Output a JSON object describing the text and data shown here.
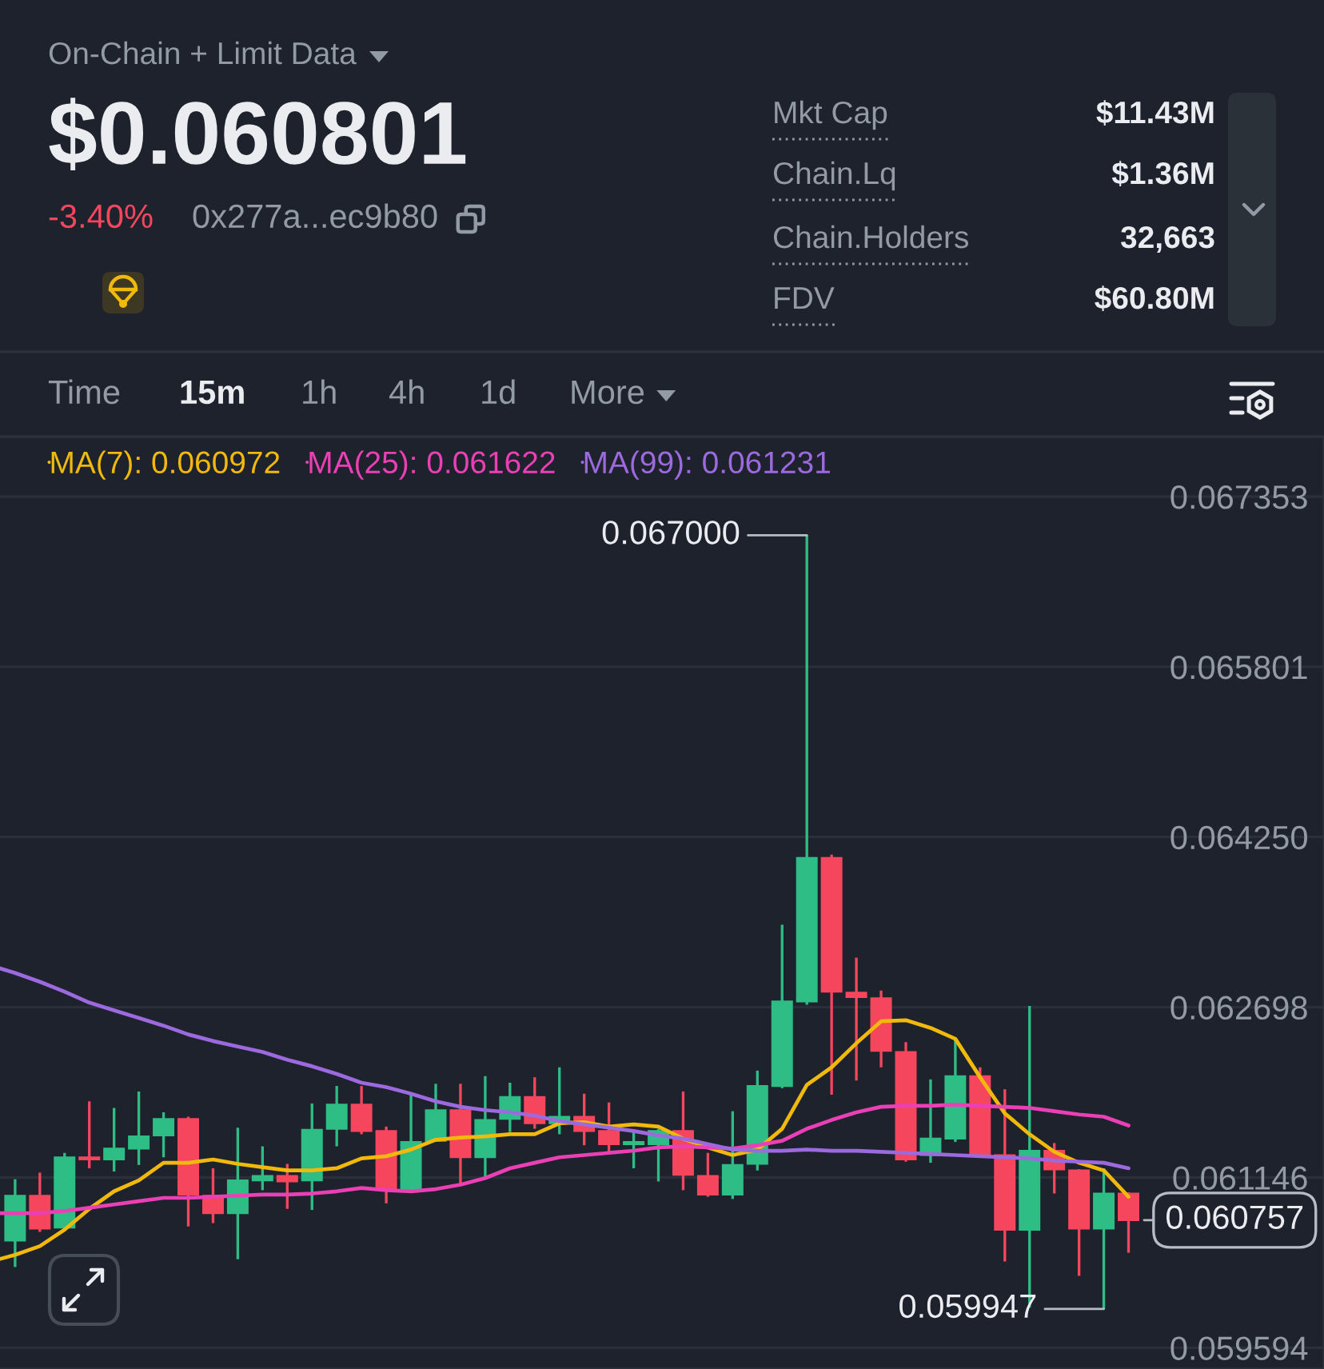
{
  "chart_data": [
    {
      "type": "other",
      "title": "On-Chain + Limit Data",
      "annotations": [
        "$0.060801",
        "-3.40%",
        "0x277a...ec9b80",
        "Mkt Cap",
        "$11.43M",
        "Chain.Lq",
        "$1.36M",
        "Chain.Holders",
        "32,663",
        "FDV",
        "$60.80M",
        "Time",
        "15m",
        "1h",
        "4h",
        "1d",
        "More"
      ]
    },
    {
      "type": "candlestick",
      "categories": [
        null,
        null,
        null,
        null,
        null,
        null,
        null,
        null,
        null,
        null,
        null,
        null,
        null,
        null,
        null,
        null,
        null,
        null,
        null,
        null,
        null,
        null,
        null,
        null,
        null,
        null,
        null,
        null,
        null,
        null,
        null,
        null,
        null,
        null,
        null,
        null,
        null,
        null,
        null,
        null,
        null,
        null,
        null,
        null,
        null,
        null,
        null
      ],
      "ohlc": [
        null,
        [
          0.06057,
          0.06113,
          0.06033,
          0.06098
        ],
        [
          0.06098,
          0.06119,
          0.06065,
          0.06068
        ],
        [
          0.06069,
          0.06137,
          0.06067,
          0.06133
        ],
        [
          0.06133,
          0.06184,
          0.06123,
          0.06131
        ],
        [
          0.06131,
          0.06178,
          0.0612,
          0.06141
        ],
        [
          0.06141,
          0.06193,
          0.06126,
          0.06152
        ],
        [
          0.06153,
          0.06174,
          0.06133,
          0.06168
        ],
        [
          0.06168,
          0.0617,
          0.0607,
          0.06099
        ],
        [
          0.06098,
          0.06123,
          0.06073,
          0.06082
        ],
        [
          0.06082,
          0.0616,
          0.0604,
          0.06112
        ],
        [
          0.06112,
          0.06143,
          0.06103,
          0.06116
        ],
        [
          0.06116,
          0.06127,
          0.06086,
          0.06111
        ],
        [
          0.06112,
          0.06182,
          0.06085,
          0.06158
        ],
        [
          0.06159,
          0.06198,
          0.06143,
          0.06181
        ],
        [
          0.06181,
          0.06198,
          0.06154,
          0.06157
        ],
        [
          0.06157,
          0.06161,
          0.06091,
          0.06104
        ],
        [
          0.06104,
          0.06191,
          0.06103,
          0.06147
        ],
        [
          0.06148,
          0.062,
          0.06147,
          0.06176
        ],
        [
          0.06176,
          0.062,
          0.06108,
          0.06133
        ],
        [
          0.06133,
          0.06207,
          0.06115,
          0.06167
        ],
        [
          0.06168,
          0.06201,
          0.06156,
          0.06188
        ],
        [
          0.06188,
          0.06206,
          0.06159,
          0.06164
        ],
        [
          0.06164,
          0.06215,
          0.06154,
          0.0617
        ],
        [
          0.0617,
          0.06191,
          0.06144,
          0.06157
        ],
        [
          0.06157,
          0.06183,
          0.06138,
          0.06145
        ],
        [
          0.06145,
          0.06157,
          0.06123,
          0.06147
        ],
        [
          0.06145,
          0.06159,
          0.06111,
          0.06157
        ],
        [
          0.06157,
          0.06193,
          0.06103,
          0.06117
        ],
        [
          0.06116,
          0.06137,
          0.06097,
          0.06099
        ],
        [
          0.06099,
          0.06175,
          0.06095,
          0.06126
        ],
        [
          0.06127,
          0.06212,
          0.06121,
          0.06198
        ],
        [
          0.06198,
          0.06345,
          0.06196,
          0.06275
        ],
        [
          0.06275,
          0.067,
          0.06272,
          0.06406
        ],
        [
          0.06406,
          0.06409,
          0.0619,
          0.06284
        ],
        [
          0.06283,
          0.06315,
          0.06203,
          0.06279
        ],
        [
          0.06278,
          0.06285,
          0.06215,
          0.0623
        ],
        [
          0.06229,
          0.06238,
          0.06129,
          0.06131
        ],
        [
          0.06135,
          0.06204,
          0.06128,
          0.0615
        ],
        [
          0.0615,
          0.06242,
          0.06147,
          0.06207
        ],
        [
          0.06207,
          0.06215,
          0.06134,
          0.06135
        ],
        [
          0.06135,
          0.06195,
          0.06038,
          0.06067
        ],
        [
          0.06067,
          0.06271,
          0.05996,
          0.06139
        ],
        [
          0.06139,
          0.06146,
          0.061,
          0.06122
        ],
        [
          0.06121,
          0.06122,
          0.06025,
          0.06068
        ],
        [
          0.06068,
          0.06123,
          0.059947,
          0.061
        ],
        [
          0.061,
          0.06101,
          0.06046,
          0.060757
        ]
      ],
      "colors": [
        null,
        "#2ebd85",
        "#f6465d",
        "#2ebd85",
        "#f6465d",
        "#2ebd85",
        "#2ebd85",
        "#2ebd85",
        "#f6465d",
        "#f6465d",
        "#2ebd85",
        "#2ebd85",
        "#f6465d",
        "#2ebd85",
        "#2ebd85",
        "#f6465d",
        "#f6465d",
        "#2ebd85",
        "#2ebd85",
        "#f6465d",
        "#2ebd85",
        "#2ebd85",
        "#f6465d",
        "#2ebd85",
        "#f6465d",
        "#f6465d",
        "#2ebd85",
        "#2ebd85",
        "#f6465d",
        "#f6465d",
        "#2ebd85",
        "#2ebd85",
        "#2ebd85",
        "#2ebd85",
        "#f6465d",
        "#f6465d",
        "#f6465d",
        "#f6465d",
        "#2ebd85",
        "#2ebd85",
        "#f6465d",
        "#f6465d",
        "#2ebd85",
        "#f6465d",
        "#f6465d",
        "#2ebd85",
        "#f6465d"
      ],
      "series": [
        {
          "type": "line",
          "name": "MA(7): 0.060972",
          "color": "#f0b90b",
          "values": [
            0.06038,
            0.06044,
            0.06052,
            0.06067,
            0.06086,
            0.06102,
            0.06112,
            0.06128,
            0.06128,
            0.06131,
            0.06127,
            0.06124,
            0.06121,
            0.06121,
            0.06123,
            0.06132,
            0.06134,
            0.0614,
            0.06149,
            0.06151,
            0.06152,
            0.06154,
            0.06154,
            0.06164,
            0.06165,
            0.06161,
            0.06163,
            0.06161,
            0.0615,
            0.06142,
            0.06135,
            0.0614,
            0.06159,
            0.06199,
            0.06215,
            0.06237,
            0.06257,
            0.06258,
            0.06251,
            0.06241,
            0.06206,
            0.06173,
            0.06154,
            0.06138,
            0.06128,
            0.06121,
            0.06097
          ]
        },
        {
          "type": "line",
          "name": "MA(25): 0.061622",
          "color": "#eb40b5",
          "values": [
            0.06082,
            0.06082,
            0.06082,
            0.06084,
            0.06087,
            0.0609,
            0.06093,
            0.06096,
            0.06096,
            0.06097,
            0.06098,
            0.06099,
            0.06099,
            0.061,
            0.06102,
            0.06105,
            0.06103,
            0.06102,
            0.06104,
            0.06108,
            0.06114,
            0.06123,
            0.06128,
            0.06133,
            0.06135,
            0.06137,
            0.06139,
            0.06142,
            0.06143,
            0.06142,
            0.06141,
            0.06144,
            0.06148,
            0.06159,
            0.06167,
            0.06174,
            0.06179,
            0.0618,
            0.0618,
            0.06181,
            0.0618,
            0.06179,
            0.06178,
            0.06175,
            0.06172,
            0.0617,
            0.06162
          ]
        },
        {
          "type": "line",
          "name": "MA(99): 0.061231",
          "color": "#9c6ade",
          "values": [
            0.06308,
            0.06301,
            0.06293,
            0.06284,
            0.06274,
            0.06267,
            0.0626,
            0.06253,
            0.06245,
            0.06239,
            0.06234,
            0.06229,
            0.06222,
            0.06216,
            0.06209,
            0.06201,
            0.06197,
            0.06191,
            0.06184,
            0.06179,
            0.06176,
            0.06174,
            0.06171,
            0.06166,
            0.06163,
            0.0616,
            0.06157,
            0.06153,
            0.0615,
            0.06145,
            0.0614,
            0.06139,
            0.06139,
            0.0614,
            0.06139,
            0.06139,
            0.06138,
            0.06137,
            0.06136,
            0.06135,
            0.06134,
            0.06133,
            0.06132,
            0.0613,
            0.06129,
            0.06128,
            0.06123
          ]
        }
      ],
      "ylim": [
        0.0594,
        0.0679
      ],
      "yticks": [
        0.059594,
        0.061146,
        0.062698,
        {
          "value": 0.06425,
          "label": "0.064250"
        },
        0.065801,
        0.067353
      ],
      "grid": "y",
      "tick_labels": "y",
      "legend": "top left",
      "annotations": [
        "0.067000",
        "0.059947",
        "0.060757"
      ]
    }
  ]
}
